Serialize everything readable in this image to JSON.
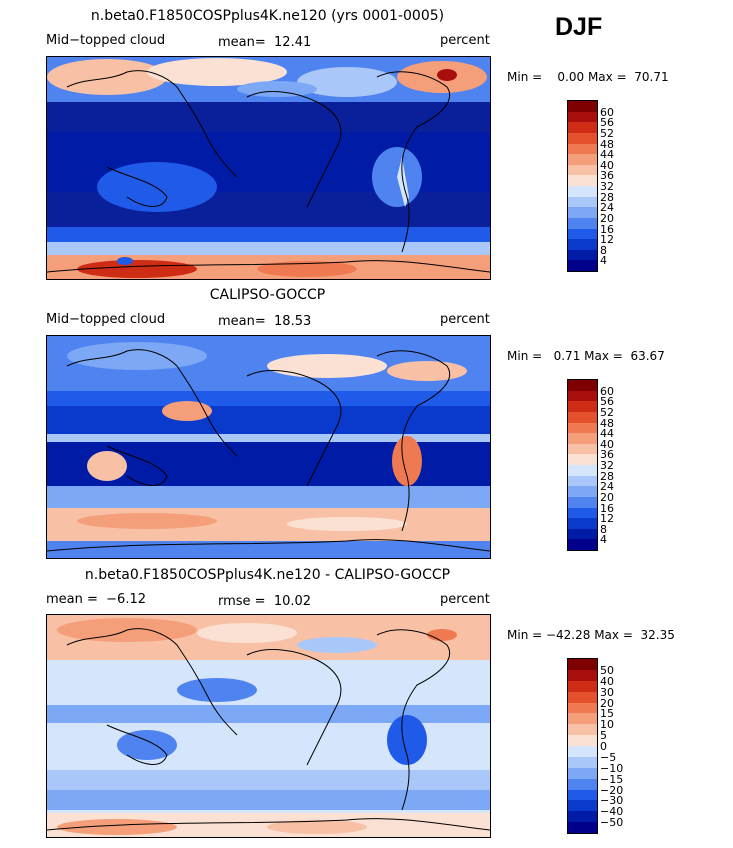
{
  "season": "DJF",
  "panels": [
    {
      "id": "model",
      "title": "n.beta0.F1850COSPplus4K.ne120 (yrs 0001-0005)",
      "left_label": "Mid−topped cloud",
      "stat_label": "mean=  12.41",
      "units": "percent",
      "minmax": "Min =    0.00 Max =  70.71",
      "levels": [
        "4",
        "8",
        "12",
        "16",
        "20",
        "24",
        "28",
        "32",
        "36",
        "40",
        "44",
        "48",
        "52",
        "56",
        "60"
      ],
      "colors": [
        "#00008b",
        "#001ba6",
        "#0a3acc",
        "#1f5ae8",
        "#4f83f0",
        "#7da8f5",
        "#a9c8f9",
        "#d4e5fc",
        "#fbe1d4",
        "#f8c1a5",
        "#f59e7a",
        "#ef7a51",
        "#e5502c",
        "#cf2c16",
        "#a80e0b",
        "#7e0000"
      ]
    },
    {
      "id": "obs",
      "title": "CALIPSO-GOCCP",
      "left_label": "Mid−topped cloud",
      "stat_label": "mean=  18.53",
      "units": "percent",
      "minmax": "Min =   0.71 Max =  63.67",
      "levels": [
        "4",
        "8",
        "12",
        "16",
        "20",
        "24",
        "28",
        "32",
        "36",
        "40",
        "44",
        "48",
        "52",
        "56",
        "60"
      ],
      "colors": [
        "#00008b",
        "#001ba6",
        "#0a3acc",
        "#1f5ae8",
        "#4f83f0",
        "#7da8f5",
        "#a9c8f9",
        "#d4e5fc",
        "#fbe1d4",
        "#f8c1a5",
        "#f59e7a",
        "#ef7a51",
        "#e5502c",
        "#cf2c16",
        "#a80e0b",
        "#7e0000"
      ]
    },
    {
      "id": "diff",
      "title": "n.beta0.F1850COSPplus4K.ne120 - CALIPSO-GOCCP",
      "left_label": "mean =  −6.12",
      "stat_label": "rmse =  10.02",
      "units": "percent",
      "minmax": "Min = −42.28 Max =  32.35",
      "levels": [
        "−50",
        "−40",
        "−30",
        "−20",
        "−15",
        "−10",
        "−5",
        "0",
        "5",
        "10",
        "15",
        "20",
        "30",
        "40",
        "50"
      ],
      "colors": [
        "#00008b",
        "#001ba6",
        "#0a3acc",
        "#1f5ae8",
        "#4f83f0",
        "#7da8f5",
        "#a9c8f9",
        "#d4e5fc",
        "#fbe1d4",
        "#f8c1a5",
        "#f59e7a",
        "#ef7a51",
        "#e5502c",
        "#cf2c16",
        "#a80e0b",
        "#7e0000"
      ]
    }
  ],
  "chart_data": {
    "type": "heatmap",
    "title": "DJF",
    "variable": "Mid-topped cloud",
    "units": "percent",
    "panels": [
      {
        "title": "n.beta0.F1850COSPplus4K.ne120 (yrs 0001-0005)",
        "mean": 12.41,
        "min": 0.0,
        "max": 70.71,
        "contour_levels": [
          4,
          8,
          12,
          16,
          20,
          24,
          28,
          32,
          36,
          40,
          44,
          48,
          52,
          56,
          60
        ]
      },
      {
        "title": "CALIPSO-GOCCP",
        "mean": 18.53,
        "min": 0.71,
        "max": 63.67,
        "contour_levels": [
          4,
          8,
          12,
          16,
          20,
          24,
          28,
          32,
          36,
          40,
          44,
          48,
          52,
          56,
          60
        ]
      },
      {
        "title": "n.beta0.F1850COSPplus4K.ne120 - CALIPSO-GOCCP",
        "mean": -6.12,
        "rmse": 10.02,
        "min": -42.28,
        "max": 32.35,
        "contour_levels": [
          -50,
          -40,
          -30,
          -20,
          -15,
          -10,
          -5,
          0,
          5,
          10,
          15,
          20,
          30,
          40,
          50
        ]
      }
    ]
  }
}
